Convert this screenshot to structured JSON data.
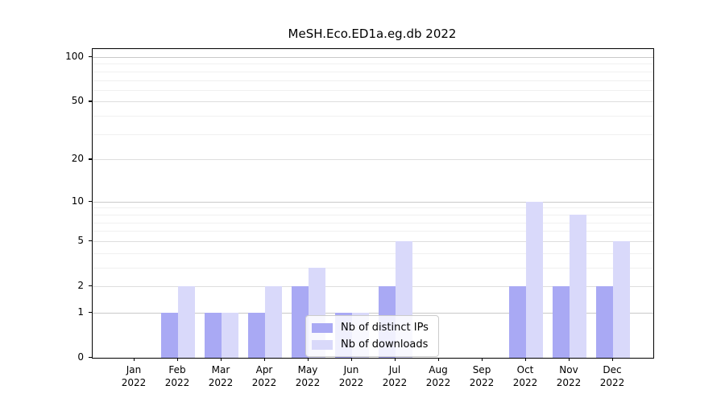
{
  "chart_data": {
    "type": "bar",
    "title": "MeSH.Eco.ED1a.eg.db 2022",
    "categories": [
      "Jan",
      "Feb",
      "Mar",
      "Apr",
      "May",
      "Jun",
      "Jul",
      "Aug",
      "Sep",
      "Oct",
      "Nov",
      "Dec"
    ],
    "year_label": "2022",
    "series": [
      {
        "name": "Nb of distinct IPs",
        "color": "#a9a9f4",
        "values": [
          0,
          1,
          1,
          1,
          2,
          1,
          2,
          0,
          0,
          2,
          2,
          2
        ]
      },
      {
        "name": "Nb of downloads",
        "color": "#d9d9fa",
        "values": [
          0,
          2,
          1,
          2,
          3,
          1,
          5,
          0,
          0,
          10,
          8,
          5
        ]
      }
    ],
    "xlabel": "",
    "ylabel": "",
    "yscale": "log1p",
    "ylim": [
      0,
      100
    ],
    "yticks": [
      0,
      1,
      2,
      5,
      10,
      20,
      50,
      100
    ],
    "yticks_minor": [
      3,
      4,
      6,
      7,
      8,
      9,
      30,
      40,
      60,
      70,
      80,
      90
    ],
    "grid": "on",
    "legend_position": "lower center"
  },
  "colors": {
    "background": "#ffffff",
    "axis_frame": "#000000",
    "grid_major": "#dedede",
    "grid_power10": "#c9c9c9",
    "grid_minor": "#f0f0f0",
    "legend_border": "#cccccc"
  }
}
